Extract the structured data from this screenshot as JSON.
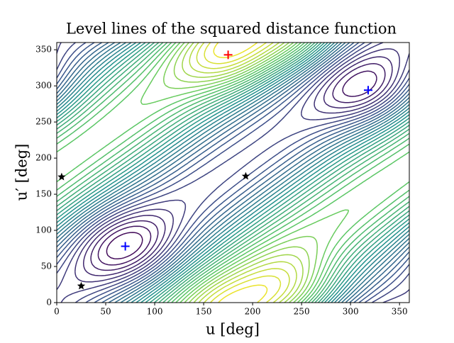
{
  "chart_data": {
    "type": "contour",
    "title": "Level lines of the squared distance function",
    "xlabel": "u [deg]",
    "ylabel": "u′ [deg]",
    "xlim": [
      0,
      360
    ],
    "ylim": [
      0,
      360
    ],
    "xticks": [
      0,
      50,
      100,
      150,
      200,
      250,
      300,
      350
    ],
    "yticks": [
      0,
      50,
      100,
      150,
      200,
      250,
      300,
      350
    ],
    "series": [
      {
        "marker": "plus",
        "color": "#ff0000",
        "x": [
          175
        ],
        "y": [
          343
        ]
      },
      {
        "marker": "plus",
        "color": "#0000ff",
        "x": [
          70,
          318
        ],
        "y": [
          78,
          294
        ]
      },
      {
        "marker": "star",
        "color": "#000000",
        "x": [
          5,
          193,
          25
        ],
        "y": [
          174,
          175,
          23
        ]
      }
    ]
  }
}
